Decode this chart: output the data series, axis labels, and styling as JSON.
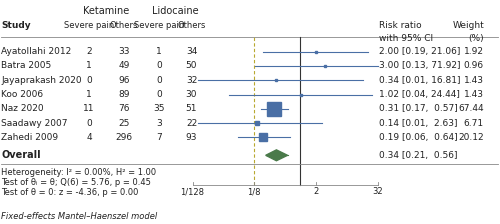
{
  "studies": [
    "Ayatollahi 2012",
    "Batra 2005",
    "Jayaprakash 2020",
    "Koo 2006",
    "Naz 2020",
    "Saadawy 2007",
    "Zahedi 2009"
  ],
  "ket_severe": [
    2,
    1,
    0,
    1,
    11,
    0,
    4
  ],
  "ket_others": [
    33,
    49,
    96,
    89,
    76,
    25,
    296
  ],
  "lid_severe": [
    1,
    0,
    0,
    0,
    35,
    3,
    7
  ],
  "lid_others": [
    34,
    50,
    32,
    30,
    51,
    22,
    93
  ],
  "rr": [
    2.0,
    3.0,
    0.34,
    1.02,
    0.31,
    0.14,
    0.19
  ],
  "ci_low": [
    0.19,
    0.13,
    0.01,
    0.04,
    0.17,
    0.01,
    0.06
  ],
  "ci_high": [
    21.06,
    71.92,
    16.81,
    24.44,
    0.57,
    2.63,
    0.64
  ],
  "weight": [
    1.92,
    0.96,
    1.43,
    1.43,
    67.44,
    6.71,
    20.12
  ],
  "rr_text": [
    "2.00 [0.19, 21.06]",
    "3.00 [0.13, 71.92]",
    "0.34 [0.01, 16.81]",
    "1.02 [0.04, 24.44]",
    "0.31 [0.17,  0.57]",
    "0.14 [0.01,  2.63]",
    "0.19 [0.06,  0.64]"
  ],
  "weight_text": [
    "1.92",
    "0.96",
    "1.43",
    "1.43",
    "67.44",
    "6.71",
    "20.12"
  ],
  "overall_rr": 0.34,
  "overall_ci_low": 0.21,
  "overall_ci_high": 0.56,
  "overall_rr_text": "0.34 [0.21,  0.56]",
  "x_ticks": [
    0.0078125,
    0.125,
    2.0,
    32.0
  ],
  "x_tick_labels": [
    "1/128",
    "1/8",
    "2",
    "32"
  ],
  "box_color": "#4a6fa5",
  "overall_color": "#4a7a4a",
  "line_color": "#4a6fa5",
  "ref_line_color": "#333333",
  "dashed_line_color": "#b8a830",
  "bg_color": "#ffffff",
  "footnote_text": "Fixed-effects Mantel–Haenszel model",
  "hetero_text": "Heterogeneity: I² = 0.00%, H² = 1.00",
  "test_theta_text": "Test of θᵢ = θ; Q(6) = 5.76, p = 0.45",
  "test_z_text": "Test of θ = 0: z = -4.36, p = 0.00",
  "title_ketamine": "Ketamine",
  "title_lidocaine": "Lidocaine"
}
